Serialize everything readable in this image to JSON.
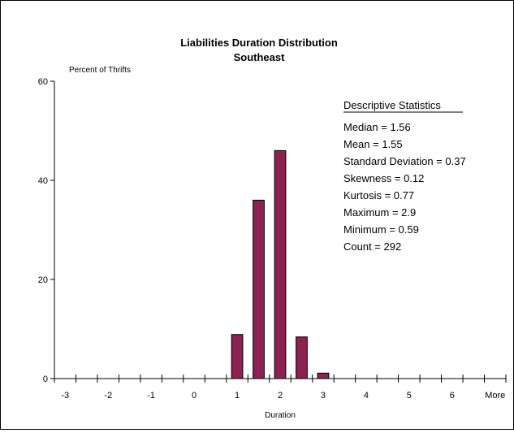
{
  "chart_data": {
    "type": "bar",
    "title": "Liabilities Duration Distribution",
    "subtitle": "Southeast",
    "ylabel": "Percent of Thrifts",
    "xlabel": "Duration",
    "ylim": [
      0,
      60
    ],
    "yticks": [
      "0",
      "20",
      "40",
      "60"
    ],
    "categories": [
      "-3",
      "-2.5",
      "-2",
      "-1.5",
      "-1",
      "-0.5",
      "0",
      "0.5",
      "1",
      "1.5",
      "2",
      "2.5",
      "3",
      "3.5",
      "4",
      "4.5",
      "5",
      "5.5",
      "6",
      "6.5",
      "More"
    ],
    "xtick_labels": [
      "-3",
      "-2",
      "-1",
      "0",
      "1",
      "2",
      "3",
      "4",
      "5",
      "6",
      "More"
    ],
    "values": [
      0,
      0,
      0,
      0,
      0,
      0,
      0,
      0,
      8.9,
      36,
      46,
      8.4,
      1.1,
      0,
      0,
      0,
      0,
      0,
      0,
      0,
      0
    ],
    "bar_color": "#8b2252",
    "grid": false,
    "legend": "none",
    "stats": {
      "heading": "Descriptive Statistics",
      "lines": [
        "Median = 1.56",
        "Mean = 1.55",
        "Standard Deviation = 0.37",
        "Skewness = 0.12",
        "Kurtosis = 0.77",
        "Maximum = 2.9",
        "Minimum = 0.59",
        "Count = 292"
      ]
    }
  }
}
